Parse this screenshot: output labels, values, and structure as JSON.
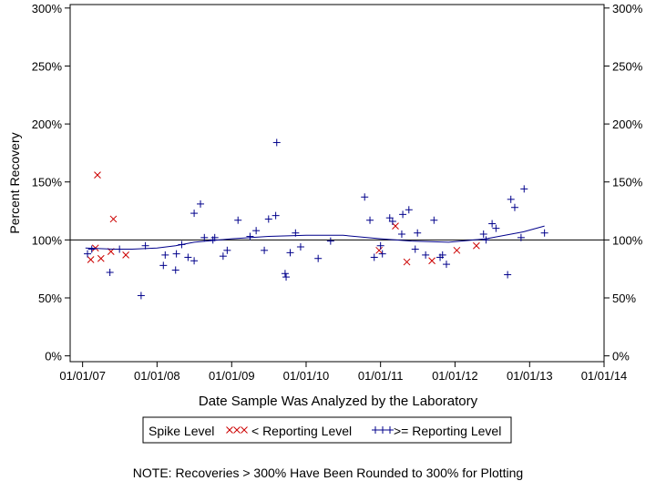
{
  "chart_data": {
    "type": "scatter",
    "title": "",
    "xlabel": "Date Sample Was Analyzed by the Laboratory",
    "ylabel": "Percent Recovery",
    "x_ticks": [
      "01/01/07",
      "01/01/08",
      "01/01/09",
      "01/01/10",
      "01/01/11",
      "01/01/12",
      "01/01/13",
      "01/01/14"
    ],
    "y_ticks": [
      "0%",
      "50%",
      "100%",
      "150%",
      "200%",
      "250%",
      "300%"
    ],
    "xlim": [
      "2006-11-01",
      "2014-01-01"
    ],
    "ylim": [
      -5,
      303
    ],
    "reference_line": 100,
    "note": "NOTE: Recoveries > 300% Have Been Rounded to 300% for Plotting",
    "legend": {
      "title": "Spike Level",
      "placement": "bottom",
      "entries": [
        {
          "label": "< Reporting Level",
          "marker": "x",
          "color": "#cc0000"
        },
        {
          "label": ">= Reporting Level",
          "marker": "+",
          "color": "#00008b"
        }
      ]
    },
    "series": [
      {
        "name": "< Reporting Level",
        "marker": "x",
        "color": "#cc0000",
        "points": [
          [
            "2007-02-10",
            83
          ],
          [
            "2007-03-05",
            93
          ],
          [
            "2007-03-15",
            156
          ],
          [
            "2007-04-01",
            84
          ],
          [
            "2007-05-20",
            90
          ],
          [
            "2007-06-01",
            118
          ],
          [
            "2007-08-01",
            87
          ],
          [
            "2010-12-25",
            91
          ],
          [
            "2011-03-15",
            112
          ],
          [
            "2011-05-10",
            81
          ],
          [
            "2011-09-10",
            82
          ],
          [
            "2012-01-10",
            91
          ],
          [
            "2012-04-15",
            95
          ]
        ]
      },
      {
        "name": ">= Reporting Level",
        "marker": "+",
        "color": "#00008b",
        "points": [
          [
            "2007-01-25",
            88
          ],
          [
            "2007-02-15",
            92
          ],
          [
            "2007-05-15",
            72
          ],
          [
            "2007-07-01",
            92
          ],
          [
            "2007-10-15",
            52
          ],
          [
            "2007-11-05",
            95
          ],
          [
            "2008-02-01",
            78
          ],
          [
            "2008-02-10",
            87
          ],
          [
            "2008-04-01",
            74
          ],
          [
            "2008-04-05",
            88
          ],
          [
            "2008-05-01",
            96
          ],
          [
            "2008-06-01",
            85
          ],
          [
            "2008-07-01",
            123
          ],
          [
            "2008-07-01",
            82
          ],
          [
            "2008-08-01",
            131
          ],
          [
            "2008-08-20",
            102
          ],
          [
            "2008-10-01",
            100
          ],
          [
            "2008-10-10",
            102
          ],
          [
            "2008-11-20",
            86
          ],
          [
            "2008-12-10",
            91
          ],
          [
            "2009-02-01",
            117
          ],
          [
            "2009-04-01",
            103
          ],
          [
            "2009-05-01",
            108
          ],
          [
            "2009-06-10",
            91
          ],
          [
            "2009-07-01",
            118
          ],
          [
            "2009-08-05",
            121
          ],
          [
            "2009-08-10",
            184
          ],
          [
            "2009-09-20",
            71
          ],
          [
            "2009-09-25",
            68
          ],
          [
            "2009-10-15",
            89
          ],
          [
            "2009-11-10",
            106
          ],
          [
            "2009-12-05",
            94
          ],
          [
            "2010-03-01",
            84
          ],
          [
            "2010-05-01",
            99
          ],
          [
            "2010-10-15",
            137
          ],
          [
            "2010-11-10",
            117
          ],
          [
            "2010-12-01",
            85
          ],
          [
            "2011-01-01",
            95
          ],
          [
            "2011-01-10",
            88
          ],
          [
            "2011-02-15",
            119
          ],
          [
            "2011-03-01",
            116
          ],
          [
            "2011-04-15",
            105
          ],
          [
            "2011-04-20",
            122
          ],
          [
            "2011-05-20",
            126
          ],
          [
            "2011-06-20",
            92
          ],
          [
            "2011-07-01",
            106
          ],
          [
            "2011-08-10",
            87
          ],
          [
            "2011-09-20",
            117
          ],
          [
            "2011-10-20",
            85
          ],
          [
            "2011-11-01",
            87
          ],
          [
            "2011-11-20",
            79
          ],
          [
            "2012-05-20",
            105
          ],
          [
            "2012-06-01",
            100
          ],
          [
            "2012-07-01",
            114
          ],
          [
            "2012-07-20",
            110
          ],
          [
            "2012-09-15",
            70
          ],
          [
            "2012-10-01",
            135
          ],
          [
            "2012-10-20",
            128
          ],
          [
            "2012-11-20",
            102
          ],
          [
            "2012-12-05",
            144
          ],
          [
            "2013-03-15",
            106
          ]
        ]
      }
    ],
    "trend_line": [
      [
        "2007-01-15",
        93
      ],
      [
        "2007-06-01",
        92
      ],
      [
        "2007-09-01",
        92
      ],
      [
        "2008-01-01",
        93
      ],
      [
        "2008-04-01",
        95
      ],
      [
        "2008-07-01",
        98
      ],
      [
        "2009-01-01",
        101
      ],
      [
        "2009-07-01",
        103
      ],
      [
        "2010-01-01",
        104
      ],
      [
        "2010-07-01",
        104
      ],
      [
        "2011-01-01",
        101
      ],
      [
        "2011-06-01",
        99
      ],
      [
        "2011-12-01",
        98
      ],
      [
        "2012-06-01",
        101
      ],
      [
        "2012-12-01",
        107
      ],
      [
        "2013-03-15",
        112
      ]
    ]
  }
}
